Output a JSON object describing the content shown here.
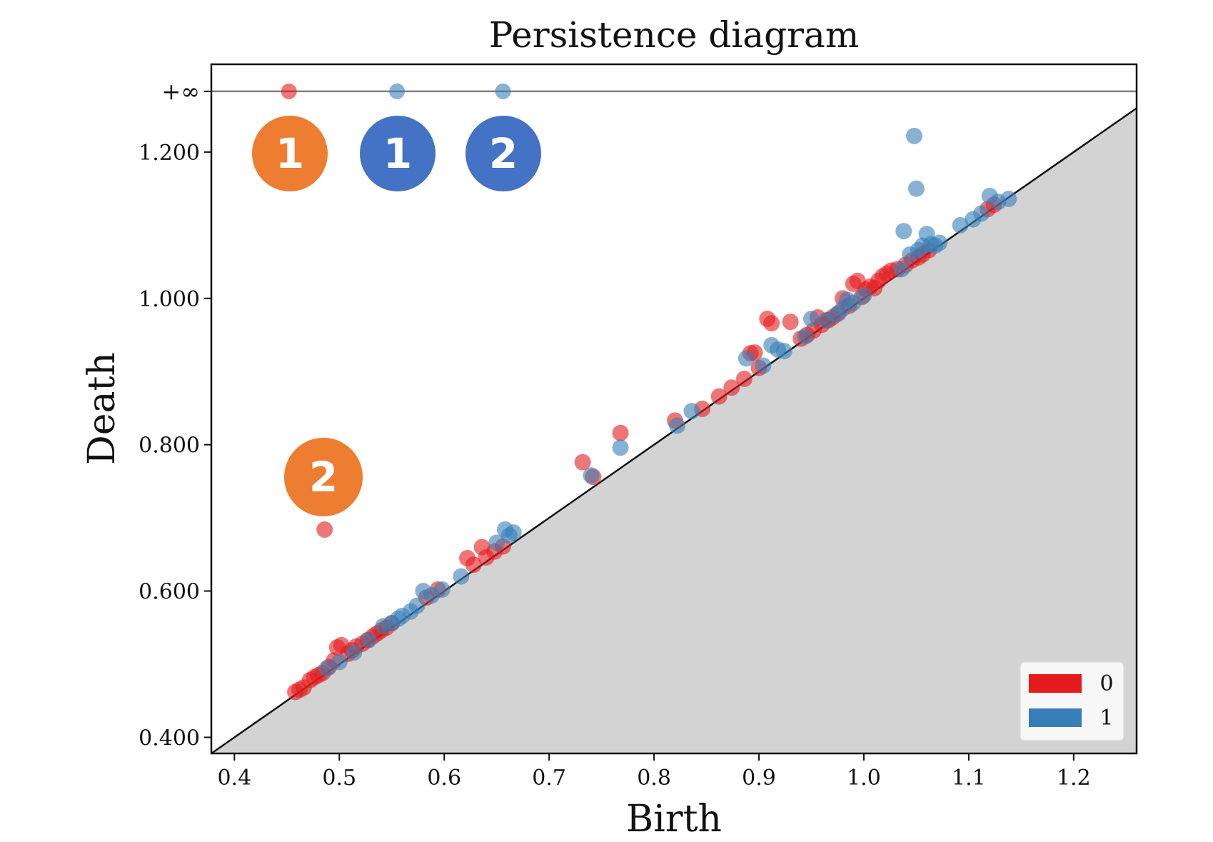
{
  "chart_data": {
    "type": "scatter",
    "title": "Persistence diagram",
    "xlabel": "Birth",
    "ylabel": "Death",
    "xlim": [
      0.378,
      1.26
    ],
    "ylim": [
      0.378,
      1.32
    ],
    "x_ticks": [
      0.4,
      0.5,
      0.6,
      0.7,
      0.8,
      0.9,
      1.0,
      1.1,
      1.2
    ],
    "x_tick_labels": [
      "0.4",
      "0.5",
      "0.6",
      "0.7",
      "0.8",
      "0.9",
      "1.0",
      "1.1",
      "1.2"
    ],
    "y_ticks": [
      0.4,
      0.6,
      0.8,
      1.0,
      1.2
    ],
    "y_tick_labels": [
      "0.400",
      "0.600",
      "0.800",
      "1.000",
      "1.200"
    ],
    "infinity_label": "+∞",
    "infinity_value": 1.283,
    "diagonal": true,
    "legend_position": "bottom-right",
    "series": [
      {
        "name": "0",
        "color": "#e41a1c",
        "points": [
          [
            0.452,
            "inf"
          ],
          [
            0.486,
            0.684
          ],
          [
            0.458,
            0.462
          ],
          [
            0.462,
            0.465
          ],
          [
            0.466,
            0.468
          ],
          [
            0.472,
            0.478
          ],
          [
            0.476,
            0.482
          ],
          [
            0.48,
            0.485
          ],
          [
            0.484,
            0.488
          ],
          [
            0.49,
            0.496
          ],
          [
            0.495,
            0.505
          ],
          [
            0.498,
            0.523
          ],
          [
            0.502,
            0.526
          ],
          [
            0.508,
            0.514
          ],
          [
            0.512,
            0.519
          ],
          [
            0.516,
            0.524
          ],
          [
            0.522,
            0.528
          ],
          [
            0.527,
            0.533
          ],
          [
            0.532,
            0.538
          ],
          [
            0.536,
            0.542
          ],
          [
            0.54,
            0.546
          ],
          [
            0.545,
            0.55
          ],
          [
            0.55,
            0.556
          ],
          [
            0.583,
            0.591
          ],
          [
            0.594,
            0.602
          ],
          [
            0.622,
            0.645
          ],
          [
            0.628,
            0.636
          ],
          [
            0.636,
            0.66
          ],
          [
            0.64,
            0.646
          ],
          [
            0.648,
            0.654
          ],
          [
            0.656,
            0.661
          ],
          [
            0.732,
            0.776
          ],
          [
            0.742,
            0.756
          ],
          [
            0.768,
            0.816
          ],
          [
            0.82,
            0.833
          ],
          [
            0.846,
            0.849
          ],
          [
            0.862,
            0.866
          ],
          [
            0.874,
            0.878
          ],
          [
            0.886,
            0.89
          ],
          [
            0.892,
            0.925
          ],
          [
            0.896,
            0.926
          ],
          [
            0.9,
            0.905
          ],
          [
            0.908,
            0.972
          ],
          [
            0.912,
            0.966
          ],
          [
            0.93,
            0.968
          ],
          [
            0.94,
            0.945
          ],
          [
            0.946,
            0.95
          ],
          [
            0.952,
            0.956
          ],
          [
            0.956,
            0.974
          ],
          [
            0.96,
            0.964
          ],
          [
            0.966,
            0.97
          ],
          [
            0.97,
            0.974
          ],
          [
            0.976,
            0.98
          ],
          [
            0.98,
            1.0
          ],
          [
            0.986,
            0.99
          ],
          [
            0.99,
            1.02
          ],
          [
            0.994,
            1.024
          ],
          [
            0.998,
            1.002
          ],
          [
            1.002,
            1.012
          ],
          [
            1.006,
            1.016
          ],
          [
            1.01,
            1.014
          ],
          [
            1.014,
            1.024
          ],
          [
            1.018,
            1.03
          ],
          [
            1.022,
            1.034
          ],
          [
            1.026,
            1.038
          ],
          [
            1.032,
            1.04
          ],
          [
            1.04,
            1.046
          ],
          [
            1.046,
            1.052
          ],
          [
            1.052,
            1.056
          ],
          [
            1.056,
            1.06
          ],
          [
            1.062,
            1.066
          ],
          [
            1.118,
            1.122
          ],
          [
            1.124,
            1.128
          ]
        ]
      },
      {
        "name": "1",
        "color": "#377eb8",
        "points": [
          [
            0.555,
            "inf"
          ],
          [
            0.656,
            "inf"
          ],
          [
            0.488,
            0.494
          ],
          [
            0.5,
            0.503
          ],
          [
            0.514,
            0.516
          ],
          [
            0.528,
            0.533
          ],
          [
            0.542,
            0.552
          ],
          [
            0.55,
            0.556
          ],
          [
            0.556,
            0.562
          ],
          [
            0.56,
            0.566
          ],
          [
            0.568,
            0.572
          ],
          [
            0.574,
            0.58
          ],
          [
            0.58,
            0.6
          ],
          [
            0.588,
            0.594
          ],
          [
            0.598,
            0.602
          ],
          [
            0.616,
            0.62
          ],
          [
            0.65,
            0.666
          ],
          [
            0.658,
            0.684
          ],
          [
            0.662,
            0.676
          ],
          [
            0.666,
            0.68
          ],
          [
            0.74,
            0.758
          ],
          [
            0.768,
            0.796
          ],
          [
            0.822,
            0.826
          ],
          [
            0.836,
            0.846
          ],
          [
            0.888,
            0.918
          ],
          [
            0.904,
            0.908
          ],
          [
            0.912,
            0.936
          ],
          [
            0.918,
            0.93
          ],
          [
            0.924,
            0.928
          ],
          [
            0.944,
            0.948
          ],
          [
            0.95,
            0.972
          ],
          [
            0.964,
            0.97
          ],
          [
            0.974,
            0.978
          ],
          [
            0.98,
            0.986
          ],
          [
            0.984,
            0.998
          ],
          [
            0.99,
            0.994
          ],
          [
            1.0,
            1.004
          ],
          [
            1.036,
            1.04
          ],
          [
            1.038,
            1.092
          ],
          [
            1.044,
            1.06
          ],
          [
            1.048,
            1.222
          ],
          [
            1.05,
            1.15
          ],
          [
            1.052,
            1.066
          ],
          [
            1.056,
            1.072
          ],
          [
            1.06,
            1.088
          ],
          [
            1.064,
            1.074
          ],
          [
            1.068,
            1.072
          ],
          [
            1.072,
            1.076
          ],
          [
            1.092,
            1.1
          ],
          [
            1.104,
            1.108
          ],
          [
            1.112,
            1.116
          ],
          [
            1.12,
            1.14
          ],
          [
            1.128,
            1.132
          ],
          [
            1.138,
            1.136
          ]
        ]
      }
    ],
    "annotations": [
      {
        "label": "1",
        "color": "#ed7d31"
      },
      {
        "label": "1",
        "color": "#4472c4"
      },
      {
        "label": "2",
        "color": "#4472c4"
      },
      {
        "label": "2",
        "color": "#ed7d31"
      }
    ]
  }
}
